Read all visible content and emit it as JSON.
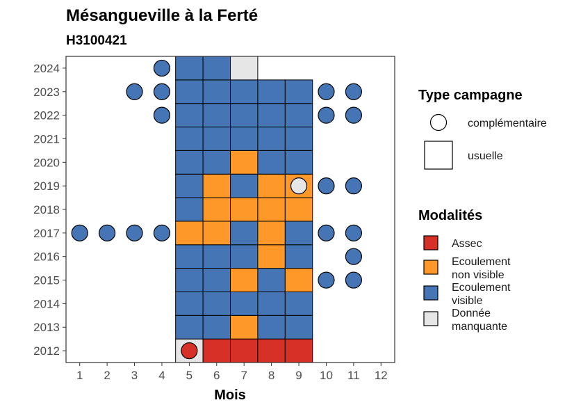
{
  "chart_data": {
    "type": "heatmap",
    "title": "Mésangueville à la Ferté",
    "subtitle": "H3100421",
    "xlabel": "Mois",
    "ylabel": "",
    "x_ticks": [
      "1",
      "2",
      "3",
      "4",
      "5",
      "6",
      "7",
      "8",
      "9",
      "10",
      "11",
      "12"
    ],
    "y_ticks": [
      "2012",
      "2013",
      "2014",
      "2015",
      "2016",
      "2017",
      "2018",
      "2019",
      "2020",
      "2021",
      "2022",
      "2023",
      "2024"
    ],
    "xlim": [
      0.5,
      12.5
    ],
    "ylim": [
      2011.5,
      2024.5
    ],
    "colors": {
      "Assec": "#d73027",
      "Ecoulement non visible": "#fe9929",
      "Ecoulement visible": "#4575b4",
      "Donnée manquante": "#e6e6e6"
    },
    "legend": {
      "type_title": "Type campagne",
      "type_items": [
        {
          "key": "complementaire",
          "label": "complémentaire",
          "shape": "circle"
        },
        {
          "key": "usuelle",
          "label": "usuelle",
          "shape": "square"
        }
      ],
      "mod_title": "Modalités",
      "mod_items": [
        {
          "key": "Assec",
          "lines": [
            "Assec"
          ]
        },
        {
          "key": "Ecoulement non visible",
          "lines": [
            "Ecoulement",
            "non visible"
          ]
        },
        {
          "key": "Ecoulement visible",
          "lines": [
            "Ecoulement",
            "visible"
          ]
        },
        {
          "key": "Donnée manquante",
          "lines": [
            "Donnée",
            "manquante"
          ]
        }
      ]
    },
    "usuelle": [
      {
        "year": 2012,
        "m5": "Donnée manquante",
        "m6": "Assec",
        "m7": "Assec",
        "m8": "Assec",
        "m9": "Assec"
      },
      {
        "year": 2013,
        "m5": "Ecoulement visible",
        "m6": "Ecoulement visible",
        "m7": "Ecoulement non visible",
        "m8": "Ecoulement visible",
        "m9": "Ecoulement visible"
      },
      {
        "year": 2014,
        "m5": "Ecoulement visible",
        "m6": "Ecoulement visible",
        "m7": "Ecoulement visible",
        "m8": "Ecoulement visible",
        "m9": "Ecoulement visible"
      },
      {
        "year": 2015,
        "m5": "Ecoulement visible",
        "m6": "Ecoulement visible",
        "m7": "Ecoulement non visible",
        "m8": "Ecoulement visible",
        "m9": "Ecoulement non visible"
      },
      {
        "year": 2016,
        "m5": "Ecoulement visible",
        "m6": "Ecoulement visible",
        "m7": "Ecoulement visible",
        "m8": "Ecoulement non visible",
        "m9": "Ecoulement visible"
      },
      {
        "year": 2017,
        "m5": "Ecoulement non visible",
        "m6": "Ecoulement non visible",
        "m7": "Ecoulement visible",
        "m8": "Ecoulement non visible",
        "m9": "Ecoulement visible"
      },
      {
        "year": 2018,
        "m5": "Ecoulement visible",
        "m6": "Ecoulement non visible",
        "m7": "Ecoulement non visible",
        "m8": "Ecoulement non visible",
        "m9": "Ecoulement non visible"
      },
      {
        "year": 2019,
        "m5": "Ecoulement visible",
        "m6": "Ecoulement non visible",
        "m7": "Ecoulement visible",
        "m8": "Ecoulement non visible",
        "m9": "Ecoulement non visible"
      },
      {
        "year": 2020,
        "m5": "Ecoulement visible",
        "m6": "Ecoulement visible",
        "m7": "Ecoulement non visible",
        "m8": "Ecoulement visible",
        "m9": "Ecoulement visible"
      },
      {
        "year": 2021,
        "m5": "Ecoulement visible",
        "m6": "Ecoulement visible",
        "m7": "Ecoulement visible",
        "m8": "Ecoulement visible",
        "m9": "Ecoulement visible"
      },
      {
        "year": 2022,
        "m5": "Ecoulement visible",
        "m6": "Ecoulement visible",
        "m7": "Ecoulement visible",
        "m8": "Ecoulement visible",
        "m9": "Ecoulement visible"
      },
      {
        "year": 2023,
        "m5": "Ecoulement visible",
        "m6": "Ecoulement visible",
        "m7": "Ecoulement visible",
        "m8": "Ecoulement visible",
        "m9": "Ecoulement visible"
      },
      {
        "year": 2024,
        "m5": "Ecoulement visible",
        "m6": "Ecoulement visible",
        "m7": "Donnée manquante"
      }
    ],
    "complementaire": [
      {
        "year": 2012,
        "month": 5,
        "modalite": "Assec"
      },
      {
        "year": 2015,
        "month": 10,
        "modalite": "Ecoulement visible"
      },
      {
        "year": 2015,
        "month": 11,
        "modalite": "Ecoulement visible"
      },
      {
        "year": 2016,
        "month": 11,
        "modalite": "Ecoulement visible"
      },
      {
        "year": 2017,
        "month": 1,
        "modalite": "Ecoulement visible"
      },
      {
        "year": 2017,
        "month": 2,
        "modalite": "Ecoulement visible"
      },
      {
        "year": 2017,
        "month": 3,
        "modalite": "Ecoulement visible"
      },
      {
        "year": 2017,
        "month": 4,
        "modalite": "Ecoulement visible"
      },
      {
        "year": 2017,
        "month": 10,
        "modalite": "Ecoulement visible"
      },
      {
        "year": 2017,
        "month": 11,
        "modalite": "Ecoulement visible"
      },
      {
        "year": 2019,
        "month": 9,
        "modalite": "Donnée manquante"
      },
      {
        "year": 2019,
        "month": 10,
        "modalite": "Ecoulement visible"
      },
      {
        "year": 2019,
        "month": 11,
        "modalite": "Ecoulement visible"
      },
      {
        "year": 2022,
        "month": 4,
        "modalite": "Ecoulement visible"
      },
      {
        "year": 2022,
        "month": 10,
        "modalite": "Ecoulement visible"
      },
      {
        "year": 2022,
        "month": 11,
        "modalite": "Ecoulement visible"
      },
      {
        "year": 2023,
        "month": 3,
        "modalite": "Ecoulement visible"
      },
      {
        "year": 2023,
        "month": 4,
        "modalite": "Ecoulement visible"
      },
      {
        "year": 2023,
        "month": 10,
        "modalite": "Ecoulement visible"
      },
      {
        "year": 2023,
        "month": 11,
        "modalite": "Ecoulement visible"
      },
      {
        "year": 2024,
        "month": 4,
        "modalite": "Ecoulement visible"
      }
    ]
  }
}
